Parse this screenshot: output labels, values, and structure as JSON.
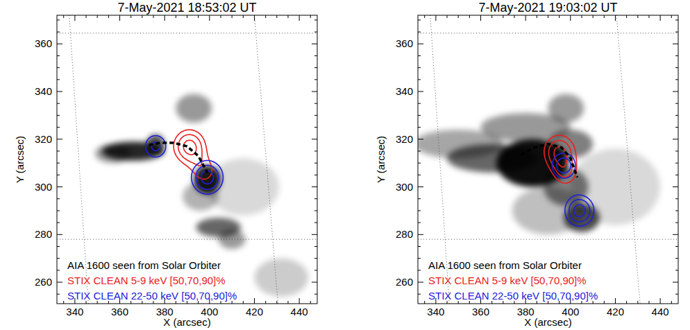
{
  "chart_data": [
    {
      "type": "contour",
      "title": "7-May-2021 18:53:02 UT",
      "x_label": "X (arcsec)",
      "y_label": "Y (arcsec)",
      "xlim": [
        332,
        448
      ],
      "ylim": [
        251,
        372
      ],
      "xticks": [
        340,
        360,
        380,
        400,
        420,
        440
      ],
      "yticks": [
        260,
        280,
        300,
        320,
        340,
        360
      ],
      "grid": true,
      "legend": "lower left",
      "grid_lines": [
        [
          337.5,
          372,
          346,
          251
        ],
        [
          420,
          372,
          430.5,
          251
        ],
        [
          332,
          364.5,
          448,
          364.5
        ],
        [
          332,
          278,
          448,
          278
        ]
      ],
      "background": {
        "name": "AIA 1600 seen from Solar Orbiter",
        "features": [
          {
            "x": 366,
            "y": 315,
            "sx": 7,
            "sy": 2,
            "intensity": 0.85
          },
          {
            "x": 357,
            "y": 314,
            "sx": 4,
            "sy": 2,
            "intensity": 0.4
          },
          {
            "x": 376,
            "y": 318,
            "sx": 2,
            "sy": 2,
            "intensity": 0.7
          },
          {
            "x": 399,
            "y": 303,
            "sx": 3,
            "sy": 3,
            "intensity": 0.9
          },
          {
            "x": 393,
            "y": 333,
            "sx": 4,
            "sy": 3,
            "intensity": 0.4
          },
          {
            "x": 404,
            "y": 283,
            "sx": 5,
            "sy": 2,
            "intensity": 0.6
          },
          {
            "x": 410,
            "y": 278,
            "sx": 3,
            "sy": 2,
            "intensity": 0.4
          },
          {
            "x": 396,
            "y": 296,
            "sx": 4,
            "sy": 3,
            "intensity": 0.3
          },
          {
            "x": 432,
            "y": 262,
            "sx": 6,
            "sy": 4,
            "intensity": 0.2
          },
          {
            "x": 415,
            "y": 300,
            "sx": 8,
            "sy": 6,
            "intensity": 0.15
          }
        ]
      },
      "series": [
        {
          "name": "STIX CLEAN 5-9 keV [50,70,90]%",
          "color": "#e82020",
          "levels": [
            50,
            70,
            90
          ],
          "sources": [
            {
              "x": 391,
              "y": 317,
              "sigma": 6,
              "peak": 1.0
            },
            {
              "x": 398,
              "y": 306,
              "sigma": 5,
              "peak": 0.55
            }
          ]
        },
        {
          "name": "STIX CLEAN 22-50 keV [50,70,90]%",
          "color": "#2020d8",
          "levels": [
            50,
            70,
            90
          ],
          "sources": [
            {
              "x": 399,
              "y": 304,
              "sigma": 6,
              "peak": 1.0
            },
            {
              "x": 376,
              "y": 317,
              "sigma": 5,
              "peak": 0.75
            }
          ]
        }
      ],
      "loop": {
        "x": [
          373,
          378,
          384,
          390,
          395,
          399
        ],
        "y": [
          317.5,
          318.5,
          318.5,
          317,
          313,
          306
        ]
      }
    },
    {
      "type": "contour",
      "title": "7-May-2021 19:03:02 UT",
      "x_label": "X (arcsec)",
      "y_label": "Y (arcsec)",
      "xlim": [
        332,
        448
      ],
      "ylim": [
        251,
        372
      ],
      "xticks": [
        340,
        360,
        380,
        400,
        420,
        440
      ],
      "yticks": [
        260,
        280,
        300,
        320,
        340,
        360
      ],
      "grid": true,
      "legend": "lower left",
      "grid_lines": [
        [
          337.5,
          372,
          346,
          251
        ],
        [
          420.5,
          372,
          431,
          251
        ],
        [
          332,
          364.5,
          448,
          364.5
        ],
        [
          332,
          278,
          448,
          278
        ]
      ],
      "background": {
        "name": "AIA 1600 seen from Solar Orbiter",
        "features": [
          {
            "x": 383,
            "y": 310,
            "sx": 8,
            "sy": 5,
            "intensity": 0.95
          },
          {
            "x": 365,
            "y": 312,
            "sx": 10,
            "sy": 3,
            "intensity": 0.6
          },
          {
            "x": 350,
            "y": 318,
            "sx": 10,
            "sy": 3,
            "intensity": 0.35
          },
          {
            "x": 380,
            "y": 325,
            "sx": 10,
            "sy": 3,
            "intensity": 0.4
          },
          {
            "x": 398,
            "y": 333,
            "sx": 4,
            "sy": 3,
            "intensity": 0.4
          },
          {
            "x": 405,
            "y": 287,
            "sx": 4,
            "sy": 3,
            "intensity": 0.7
          },
          {
            "x": 398,
            "y": 300,
            "sx": 5,
            "sy": 4,
            "intensity": 0.5
          },
          {
            "x": 390,
            "y": 290,
            "sx": 8,
            "sy": 5,
            "intensity": 0.25
          },
          {
            "x": 420,
            "y": 300,
            "sx": 10,
            "sy": 8,
            "intensity": 0.15
          },
          {
            "x": 400,
            "y": 318,
            "sx": 5,
            "sy": 3,
            "intensity": 0.5
          }
        ]
      },
      "series": [
        {
          "name": "STIX CLEAN 5-9 keV [50,70,90]%",
          "color": "#e82020",
          "levels": [
            50,
            70,
            90
          ],
          "sources": [
            {
              "x": 395,
              "y": 315,
              "sigma": 6,
              "peak": 1.0
            },
            {
              "x": 398,
              "y": 305,
              "sigma": 5,
              "peak": 0.6
            }
          ]
        },
        {
          "name": "STIX CLEAN 22-50 keV [50,70,90]%",
          "color": "#2020d8",
          "levels": [
            50,
            70,
            90
          ],
          "sources": [
            {
              "x": 404,
              "y": 290,
              "sigma": 5.5,
              "peak": 1.0
            },
            {
              "x": 397,
              "y": 309,
              "sigma": 5,
              "peak": 0.85
            }
          ]
        }
      ],
      "loop": {
        "x": [
          378,
          384,
          390,
          396,
          400,
          403
        ],
        "y": [
          313.5,
          316.5,
          318,
          316.5,
          312,
          304
        ]
      }
    }
  ]
}
